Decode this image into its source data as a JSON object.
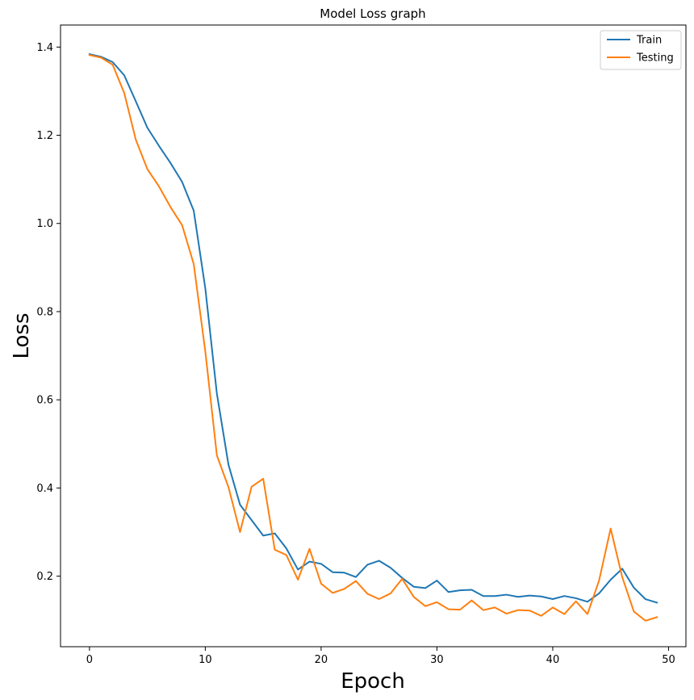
{
  "chart_data": {
    "type": "line",
    "title": "Model Loss graph",
    "xlabel": "Epoch",
    "ylabel": "Loss",
    "xlim": [
      -2.5,
      51.5
    ],
    "ylim": [
      0.04,
      1.45
    ],
    "xticks": [
      0,
      10,
      20,
      30,
      40,
      50
    ],
    "yticks": [
      0.2,
      0.4,
      0.6,
      0.8,
      1.0,
      1.2,
      1.4
    ],
    "xtick_labels": [
      "0",
      "10",
      "20",
      "30",
      "40",
      "50"
    ],
    "ytick_labels": [
      "0.2",
      "0.4",
      "0.6",
      "0.8",
      "1.0",
      "1.2",
      "1.4"
    ],
    "grid": false,
    "legend_position": "top-right",
    "x": [
      0,
      1,
      2,
      3,
      4,
      5,
      6,
      7,
      8,
      9,
      10,
      11,
      12,
      13,
      14,
      15,
      16,
      17,
      18,
      19,
      20,
      21,
      22,
      23,
      24,
      25,
      26,
      27,
      28,
      29,
      30,
      31,
      32,
      33,
      34,
      35,
      36,
      37,
      38,
      39,
      40,
      41,
      42,
      43,
      44,
      45,
      46,
      47,
      48,
      49
    ],
    "series": [
      {
        "name": "Train",
        "color": "#1f77b4",
        "values": [
          1.384,
          1.378,
          1.366,
          1.336,
          1.277,
          1.217,
          1.176,
          1.137,
          1.094,
          1.029,
          0.853,
          0.614,
          0.453,
          0.362,
          0.327,
          0.292,
          0.297,
          0.263,
          0.215,
          0.233,
          0.228,
          0.209,
          0.208,
          0.198,
          0.226,
          0.235,
          0.219,
          0.196,
          0.176,
          0.173,
          0.19,
          0.164,
          0.168,
          0.169,
          0.155,
          0.155,
          0.158,
          0.153,
          0.156,
          0.154,
          0.148,
          0.155,
          0.15,
          0.142,
          0.161,
          0.192,
          0.217,
          0.174,
          0.148,
          0.14
        ]
      },
      {
        "name": "Testing",
        "color": "#ff7f0e",
        "values": [
          1.382,
          1.376,
          1.36,
          1.296,
          1.19,
          1.123,
          1.084,
          1.037,
          0.996,
          0.908,
          0.71,
          0.474,
          0.402,
          0.3,
          0.403,
          0.421,
          0.26,
          0.248,
          0.192,
          0.262,
          0.183,
          0.162,
          0.171,
          0.189,
          0.16,
          0.148,
          0.161,
          0.194,
          0.153,
          0.132,
          0.141,
          0.125,
          0.124,
          0.145,
          0.123,
          0.129,
          0.115,
          0.123,
          0.122,
          0.11,
          0.129,
          0.114,
          0.143,
          0.114,
          0.19,
          0.308,
          0.198,
          0.12,
          0.099,
          0.107
        ]
      }
    ]
  }
}
